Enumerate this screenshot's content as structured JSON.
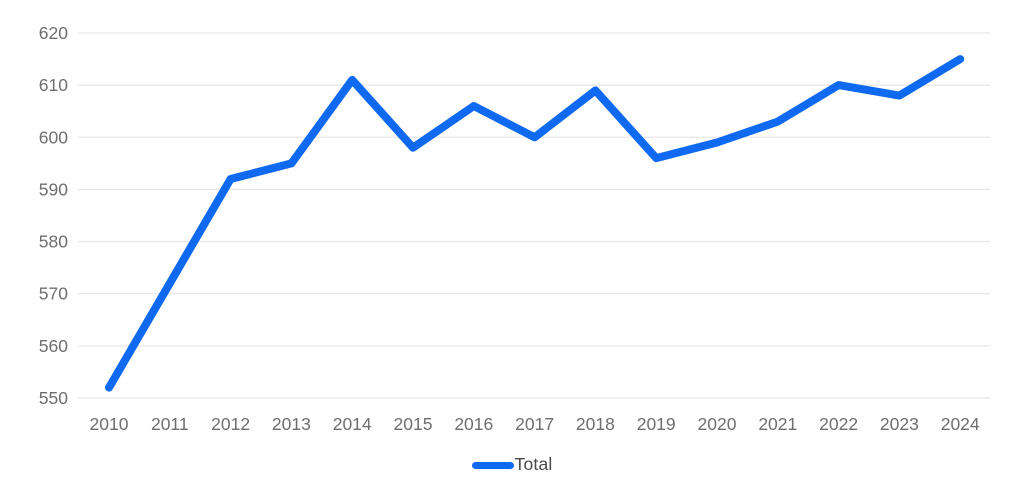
{
  "chart_data": {
    "type": "line",
    "title": "",
    "xlabel": "",
    "ylabel": "",
    "x_labels": [
      "2010",
      "2011",
      "2012",
      "2013",
      "2014",
      "2015",
      "2016",
      "2017",
      "2018",
      "2019",
      "2020",
      "2021",
      "2022",
      "2023",
      "2024"
    ],
    "series": [
      {
        "name": "Total",
        "values": [
          552,
          572,
          592,
          595,
          611,
          598,
          606,
          600,
          609,
          596,
          599,
          603,
          610,
          608,
          615
        ]
      }
    ],
    "ylim": [
      550,
      620
    ],
    "y_ticks": [
      550,
      560,
      570,
      580,
      590,
      600,
      610,
      620
    ],
    "grid": "horizontal-only",
    "legend_position": "bottom-center"
  },
  "colors": {
    "line": "#0f6af1",
    "grid": "#e7e7e7",
    "tick_text": "#6e6e6e",
    "legend_text": "#4a4a4c",
    "background": "#ffffff"
  }
}
